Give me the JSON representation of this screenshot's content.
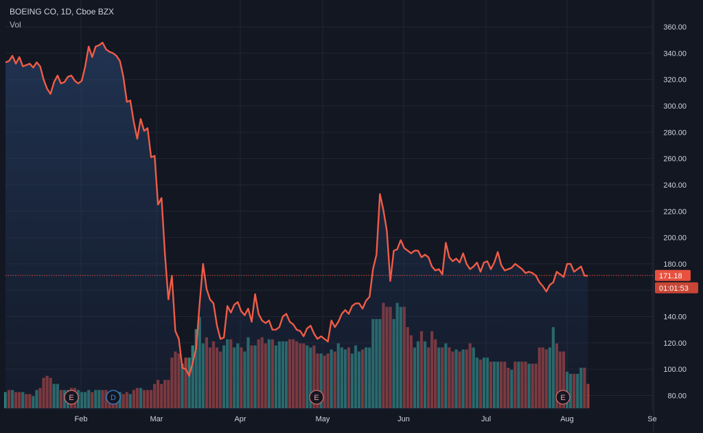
{
  "header": {
    "title": "BOEING CO, 1D, Cboe BZX",
    "indicator": "Vol"
  },
  "colors": {
    "background": "#131722",
    "line": "#f05c46",
    "up": "#2f7f78",
    "down": "#9e3e3b",
    "grid": "#232733",
    "axis_text": "#d1d4dc",
    "price_label": "#e8513f",
    "event_border": "#e06b6b",
    "dividend_border": "#3d86dc"
  },
  "chart_data": {
    "type": "line",
    "title": "BOEING CO, 1D, Cboe BZX",
    "ylim": [
      70,
      372
    ],
    "y_ticks": [
      "360.00",
      "340.00",
      "320.00",
      "300.00",
      "280.00",
      "260.00",
      "240.00",
      "220.00",
      "200.00",
      "180.00",
      "160.00",
      "140.00",
      "120.00",
      "100.00",
      "80.00"
    ],
    "x_ticks": [
      "Feb",
      "Mar",
      "Apr",
      "May",
      "Jun",
      "Jul",
      "Aug",
      "Se"
    ],
    "current_price": "171.18",
    "countdown": "01:01:53",
    "series": [
      {
        "values": [
          333,
          334,
          338,
          332,
          337,
          330,
          331,
          332,
          329,
          333,
          330,
          320,
          313,
          309,
          318,
          323,
          317,
          318,
          322,
          323,
          319,
          317,
          319,
          330,
          345,
          337,
          345,
          346,
          348,
          343,
          341,
          340,
          338,
          334,
          322,
          303,
          304,
          288,
          275,
          290,
          281,
          283,
          261,
          262,
          225,
          230,
          187,
          153,
          171,
          129,
          123,
          101,
          100,
          95,
          105,
          116,
          150,
          180,
          161,
          153,
          150,
          133,
          123,
          124,
          148,
          143,
          149,
          151,
          144,
          141,
          146,
          136,
          157,
          142,
          137,
          135,
          137,
          130,
          130,
          132,
          140,
          142,
          136,
          134,
          130,
          129,
          125,
          131,
          133,
          127,
          123,
          125,
          123,
          121,
          137,
          132,
          136,
          142,
          145,
          142,
          148,
          150,
          150,
          146,
          152,
          155,
          176,
          187,
          233,
          221,
          205,
          167,
          190,
          191,
          198,
          192,
          190,
          188,
          190,
          190,
          185,
          187,
          185,
          178,
          175,
          176,
          172,
          196,
          185,
          182,
          184,
          181,
          188,
          180,
          176,
          178,
          181,
          174,
          181,
          182,
          176,
          181,
          189,
          179,
          175,
          176,
          177,
          180,
          178,
          176,
          173,
          174,
          173,
          171,
          166,
          163,
          159,
          164,
          166,
          174,
          172,
          170,
          180,
          180,
          174,
          176,
          178,
          171,
          171
        ]
      }
    ],
    "volume": {
      "values": [
        8,
        9,
        9,
        8,
        8,
        8,
        7,
        7,
        6,
        9,
        10,
        15,
        16,
        15,
        12,
        12,
        9,
        9,
        9,
        10,
        10,
        9,
        8,
        8,
        9,
        8,
        9,
        9,
        9,
        9,
        8,
        8,
        8,
        8,
        7,
        8,
        7,
        9,
        10,
        10,
        9,
        9,
        9,
        12,
        14,
        12,
        14,
        14,
        25,
        28,
        27,
        22,
        25,
        25,
        31,
        39,
        45,
        32,
        35,
        30,
        33,
        30,
        28,
        31,
        34,
        34,
        30,
        32,
        30,
        28,
        35,
        31,
        31,
        34,
        35,
        32,
        34,
        34,
        31,
        33,
        33,
        33,
        34,
        34,
        33,
        32,
        32,
        31,
        30,
        31,
        27,
        27,
        26,
        27,
        29,
        28,
        32,
        30,
        29,
        30,
        27,
        31,
        28,
        29,
        30,
        30,
        44,
        44,
        44,
        52,
        50,
        50,
        44,
        52,
        50,
        50,
        40,
        36,
        30,
        33,
        38,
        33,
        30,
        38,
        34,
        30,
        30,
        32,
        30,
        28,
        29,
        28,
        29,
        29,
        32,
        30,
        25,
        24,
        25,
        25,
        23,
        23,
        23,
        23,
        23,
        20,
        19,
        23,
        23,
        23,
        23,
        22,
        22,
        22,
        30,
        30,
        29,
        30,
        40,
        32,
        28,
        28,
        18,
        17,
        17,
        17,
        20,
        20,
        12
      ],
      "directions": [
        "u",
        "d",
        "u",
        "d",
        "d",
        "u",
        "d",
        "d",
        "u",
        "u",
        "d",
        "d",
        "d",
        "d",
        "u",
        "u",
        "d",
        "u",
        "u",
        "d",
        "d",
        "u",
        "u",
        "u",
        "u",
        "d",
        "u",
        "u",
        "d",
        "d",
        "d",
        "d",
        "d",
        "u",
        "d",
        "d",
        "u",
        "d",
        "d",
        "u",
        "d",
        "d",
        "d",
        "d",
        "d",
        "d",
        "d",
        "d",
        "d",
        "d",
        "d",
        "u",
        "d",
        "u",
        "u",
        "u",
        "u",
        "u",
        "d",
        "d",
        "d",
        "d",
        "d",
        "u",
        "u",
        "d",
        "u",
        "u",
        "d",
        "u",
        "u",
        "d",
        "u",
        "d",
        "d",
        "d",
        "u",
        "d",
        "u",
        "u",
        "u",
        "u",
        "d",
        "d",
        "d",
        "d",
        "d",
        "u",
        "u",
        "d",
        "d",
        "u",
        "d",
        "d",
        "u",
        "d",
        "u",
        "u",
        "u",
        "d",
        "u",
        "u",
        "u",
        "d",
        "u",
        "u",
        "u",
        "u",
        "u",
        "d",
        "d",
        "d",
        "u",
        "u",
        "u",
        "d",
        "d",
        "d",
        "u",
        "u",
        "d",
        "u",
        "d",
        "d",
        "d",
        "u",
        "d",
        "u",
        "d",
        "d",
        "u",
        "d",
        "u",
        "d",
        "d",
        "u",
        "u",
        "d",
        "u",
        "u",
        "d",
        "u",
        "u",
        "d",
        "d",
        "d",
        "u",
        "d",
        "u",
        "d",
        "d",
        "u",
        "d",
        "d",
        "d",
        "d",
        "d",
        "u",
        "u",
        "d",
        "d",
        "d",
        "u",
        "u",
        "d",
        "u",
        "u",
        "d",
        "d"
      ]
    }
  },
  "events": [
    {
      "letter": "E",
      "type": "earnings"
    },
    {
      "letter": "D",
      "type": "dividend"
    },
    {
      "letter": "E",
      "type": "earnings"
    },
    {
      "letter": "E",
      "type": "earnings"
    }
  ]
}
